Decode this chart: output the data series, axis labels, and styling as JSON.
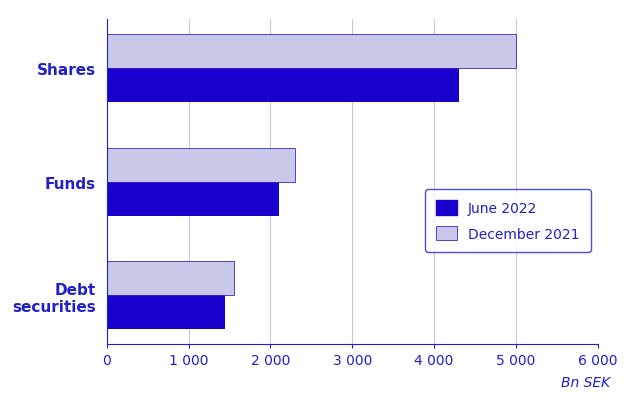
{
  "categories": [
    "Shares",
    "Funds",
    "Debt\nsecurities"
  ],
  "june_2022": [
    4300,
    2100,
    1450
  ],
  "dec_2021": [
    5000,
    2300,
    1550
  ],
  "bar_color_june": "#1a00cc",
  "bar_color_dec": "#c8c8e8",
  "legend_labels": [
    "June 2022",
    "December 2021"
  ],
  "xlabel": "Bn SEK",
  "xlim": [
    0,
    6000
  ],
  "xticks": [
    0,
    1000,
    2000,
    3000,
    4000,
    5000,
    6000
  ],
  "xtick_labels": [
    "0",
    "1 000",
    "2 000",
    "3 000",
    "4 000",
    "5 000",
    "6 000"
  ],
  "bar_height": 0.3,
  "text_color": "#2020cc",
  "background_color": "#ffffff",
  "grid_color": "#c8c8e8",
  "legend_box_color": "#2020cc"
}
